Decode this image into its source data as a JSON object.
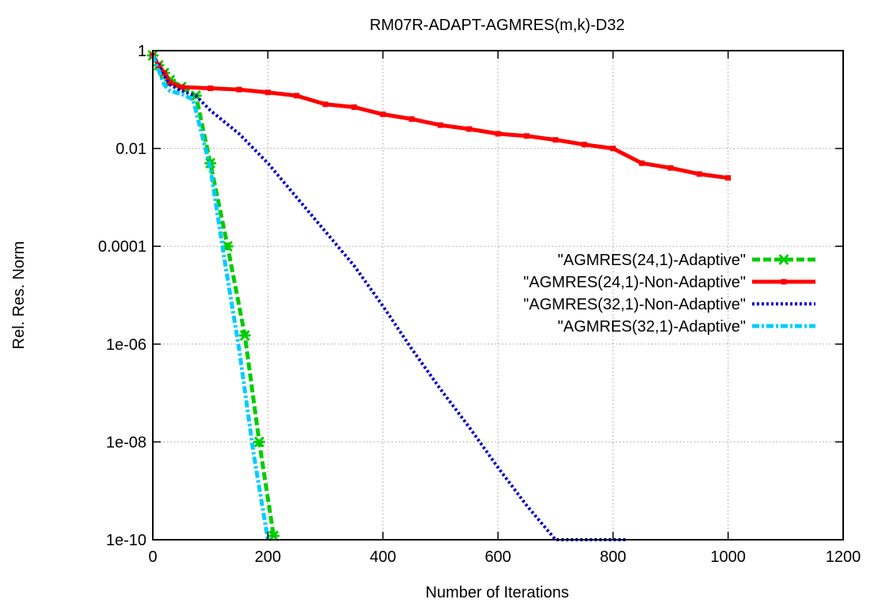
{
  "chart_data": {
    "type": "line",
    "title": "RM07R-ADAPT-AGMRES(m,k)-D32",
    "xlabel": "Number of Iterations",
    "ylabel": "Rel. Res. Norm",
    "xlim": [
      0,
      1200
    ],
    "ylim": [
      1e-10,
      1
    ],
    "yscale": "log",
    "grid": true,
    "legend_position": "right",
    "x_ticks": [
      {
        "value": 0,
        "label": "0"
      },
      {
        "value": 200,
        "label": "200"
      },
      {
        "value": 400,
        "label": "400"
      },
      {
        "value": 600,
        "label": "600"
      },
      {
        "value": 800,
        "label": "800"
      },
      {
        "value": 1000,
        "label": "1000"
      },
      {
        "value": 1200,
        "label": "1200"
      }
    ],
    "y_ticks": [
      {
        "value": 1,
        "label": "1"
      },
      {
        "value": 0.01,
        "label": "0.01"
      },
      {
        "value": 0.0001,
        "label": "0.0001"
      },
      {
        "value": 1e-06,
        "label": "1e-06"
      },
      {
        "value": 1e-08,
        "label": "1e-08"
      },
      {
        "value": 1e-10,
        "label": "1e-10"
      }
    ],
    "series": [
      {
        "name": "\"AGMRES(24,1)-Adaptive\"",
        "color": "#00cc00",
        "style": "dashed",
        "marker": "star",
        "x": [
          0,
          10,
          20,
          30,
          50,
          75,
          100,
          130,
          160,
          185,
          210
        ],
        "y": [
          0.8,
          0.5,
          0.35,
          0.25,
          0.18,
          0.12,
          0.005,
          0.0001,
          1.5e-06,
          1e-08,
          1.2e-10
        ]
      },
      {
        "name": "\"AGMRES(24,1)-Non-Adaptive\"",
        "color": "#ff0000",
        "style": "solid",
        "marker": "square",
        "x": [
          0,
          10,
          20,
          30,
          50,
          100,
          150,
          200,
          250,
          300,
          350,
          400,
          450,
          500,
          550,
          600,
          650,
          700,
          750,
          800,
          850,
          900,
          950,
          1000
        ],
        "y": [
          0.8,
          0.5,
          0.35,
          0.22,
          0.18,
          0.17,
          0.16,
          0.14,
          0.12,
          0.08,
          0.07,
          0.05,
          0.04,
          0.03,
          0.025,
          0.02,
          0.018,
          0.015,
          0.012,
          0.01,
          0.005,
          0.004,
          0.003,
          0.0025
        ]
      },
      {
        "name": "\"AGMRES(32,1)-Non-Adaptive\"",
        "color": "#0000cc",
        "style": "dotted",
        "marker": "none",
        "x": [
          0,
          10,
          20,
          30,
          50,
          75,
          100,
          150,
          200,
          250,
          300,
          350,
          400,
          450,
          500,
          550,
          600,
          650,
          700,
          750,
          800,
          825
        ],
        "y": [
          0.8,
          0.5,
          0.3,
          0.2,
          0.15,
          0.12,
          0.06,
          0.02,
          0.005,
          0.001,
          0.0002,
          4e-05,
          6e-06,
          8e-07,
          1.2e-07,
          2e-08,
          3e-09,
          5e-10,
          1e-10,
          1e-10,
          1e-10,
          1e-10
        ]
      },
      {
        "name": "\"AGMRES(32,1)-Adaptive\"",
        "color": "#00ccff",
        "style": "dashdot",
        "marker": "none",
        "x": [
          0,
          10,
          20,
          30,
          50,
          70,
          100,
          125,
          150,
          175,
          200
        ],
        "y": [
          0.8,
          0.4,
          0.2,
          0.15,
          0.13,
          0.1,
          0.004,
          5e-05,
          8e-07,
          6e-09,
          1e-10
        ]
      }
    ]
  }
}
